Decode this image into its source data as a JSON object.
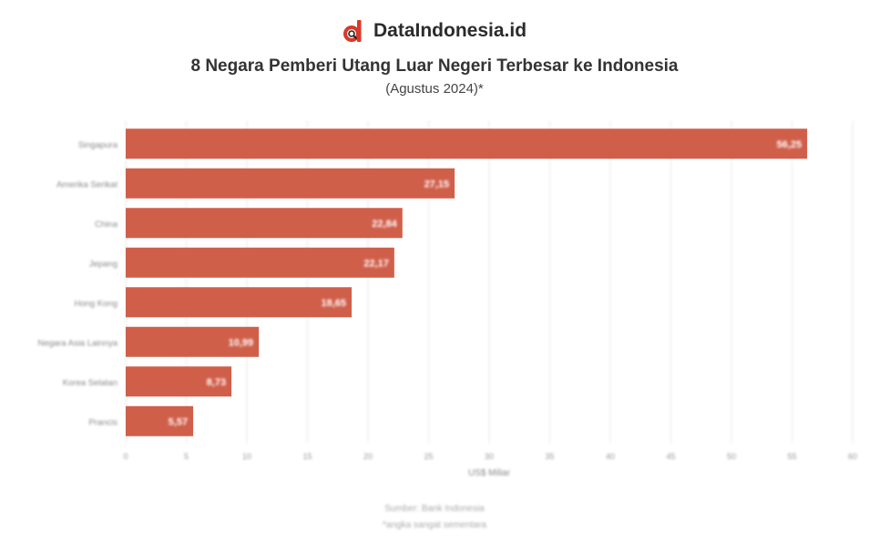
{
  "brand": {
    "name": "DataIndonesia.id",
    "logo_icon": "dataindonesia-logo-icon"
  },
  "header": {
    "title": "8 Negara Pemberi Utang Luar Negeri Terbesar ke Indonesia",
    "subtitle": "(Agustus 2024)*"
  },
  "footer": {
    "source": "Sumber: Bank Indonesia",
    "note": "*angka sangat sementara"
  },
  "chart_data": {
    "type": "bar",
    "orientation": "horizontal",
    "categories": [
      "Singapura",
      "Amerika Serikat",
      "China",
      "Jepang",
      "Hong Kong",
      "Negara Asia Lainnya",
      "Korea Selatan",
      "Prancis"
    ],
    "values": [
      56.25,
      27.15,
      22.84,
      22.17,
      18.65,
      10.99,
      8.73,
      5.57
    ],
    "value_labels": [
      "56,25",
      "27,15",
      "22,84",
      "22,17",
      "18,65",
      "10,99",
      "8,73",
      "5,57"
    ],
    "xlabel": "US$ Miliar",
    "xlim": [
      0,
      60
    ],
    "xticks": [
      0,
      5,
      10,
      15,
      20,
      25,
      30,
      35,
      40,
      45,
      50,
      55,
      60
    ],
    "grid": true,
    "bar_color": "#d05f4a"
  }
}
